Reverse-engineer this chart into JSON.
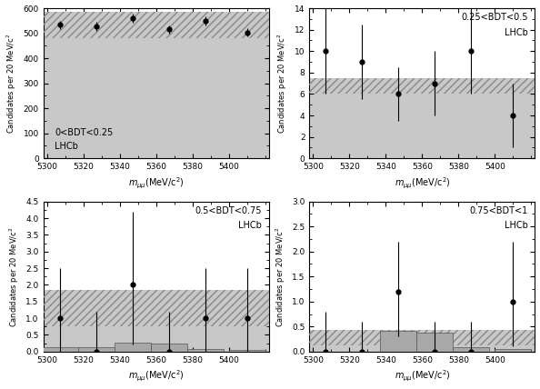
{
  "panels": [
    {
      "label": "0<BDT<0.25",
      "label_loc": "lower left",
      "x_points": [
        5307,
        5327,
        5347,
        5367,
        5387,
        5410
      ],
      "y_points": [
        533,
        527,
        560,
        515,
        548,
        503
      ],
      "y_err_lo": [
        18,
        18,
        18,
        17,
        18,
        17
      ],
      "y_err_hi": [
        18,
        18,
        18,
        17,
        18,
        17
      ],
      "bg_low": 480,
      "bg_high": 585,
      "sig_bars": [],
      "ylim": [
        0,
        600
      ],
      "yticks": [
        0,
        100,
        200,
        300,
        400,
        500,
        600
      ]
    },
    {
      "label": "0.25<BDT<0.5",
      "label_loc": "upper right",
      "x_points": [
        5307,
        5327,
        5347,
        5367,
        5387,
        5410
      ],
      "y_points": [
        10,
        9,
        6,
        7,
        10,
        4
      ],
      "y_err_lo": [
        4,
        3.5,
        2.5,
        3,
        4,
        3
      ],
      "y_err_hi": [
        4,
        3.5,
        2.5,
        3,
        4,
        3
      ],
      "bg_low": 6.0,
      "bg_high": 7.5,
      "sig_bars": [],
      "ylim": [
        0,
        14
      ],
      "yticks": [
        0,
        2,
        4,
        6,
        8,
        10,
        12,
        14
      ]
    },
    {
      "label": "0.5<BDT<0.75",
      "label_loc": "upper right",
      "x_points": [
        5307,
        5327,
        5347,
        5367,
        5387,
        5410
      ],
      "y_points": [
        1.0,
        0.0,
        2.0,
        0.0,
        1.0,
        1.0
      ],
      "y_err_lo": [
        1.0,
        0.0,
        1.8,
        0.0,
        1.0,
        1.0
      ],
      "y_err_hi": [
        1.5,
        1.2,
        2.2,
        1.2,
        1.5,
        1.5
      ],
      "bg_low": 0.75,
      "bg_high": 1.85,
      "sig_bars": [
        {
          "x": 5307,
          "y_lo": 0.0,
          "y_hi": 0.13
        },
        {
          "x": 5327,
          "y_lo": 0.0,
          "y_hi": 0.13
        },
        {
          "x": 5347,
          "y_lo": 0.0,
          "y_hi": 0.26
        },
        {
          "x": 5367,
          "y_lo": 0.0,
          "y_hi": 0.23
        },
        {
          "x": 5387,
          "y_lo": 0.0,
          "y_hi": 0.07
        },
        {
          "x": 5410,
          "y_lo": 0.0,
          "y_hi": 0.04
        }
      ],
      "ylim": [
        0,
        4.5
      ],
      "yticks": [
        0,
        0.5,
        1.0,
        1.5,
        2.0,
        2.5,
        3.0,
        3.5,
        4.0,
        4.5
      ]
    },
    {
      "label": "0.75<BDT<1",
      "label_loc": "upper right",
      "x_points": [
        5307,
        5327,
        5347,
        5367,
        5387,
        5410
      ],
      "y_points": [
        0.0,
        0.0,
        1.2,
        0.0,
        0.0,
        1.0
      ],
      "y_err_lo": [
        0.0,
        0.0,
        0.9,
        0.0,
        0.0,
        0.9
      ],
      "y_err_hi": [
        0.8,
        0.6,
        1.0,
        0.6,
        0.6,
        1.2
      ],
      "bg_low": 0.13,
      "bg_high": 0.43,
      "sig_bars": [
        {
          "x": 5347,
          "y_lo": 0.0,
          "y_hi": 0.42
        },
        {
          "x": 5367,
          "y_lo": 0.0,
          "y_hi": 0.38
        },
        {
          "x": 5387,
          "y_lo": 0.0,
          "y_hi": 0.08
        },
        {
          "x": 5410,
          "y_lo": 0.0,
          "y_hi": 0.06
        }
      ],
      "ylim": [
        0,
        3
      ],
      "yticks": [
        0,
        0.5,
        1.0,
        1.5,
        2.0,
        2.5,
        3.0
      ]
    }
  ],
  "x_range": [
    5298,
    5422
  ],
  "x_lo": 5298,
  "x_hi": 5422,
  "xticks": [
    5300,
    5320,
    5340,
    5360,
    5380,
    5400
  ],
  "bin_width": 20,
  "bg_color": "#c8c8c8",
  "hatch_color": "#888888",
  "sig_color": "#a8a8a8",
  "point_color": "black"
}
